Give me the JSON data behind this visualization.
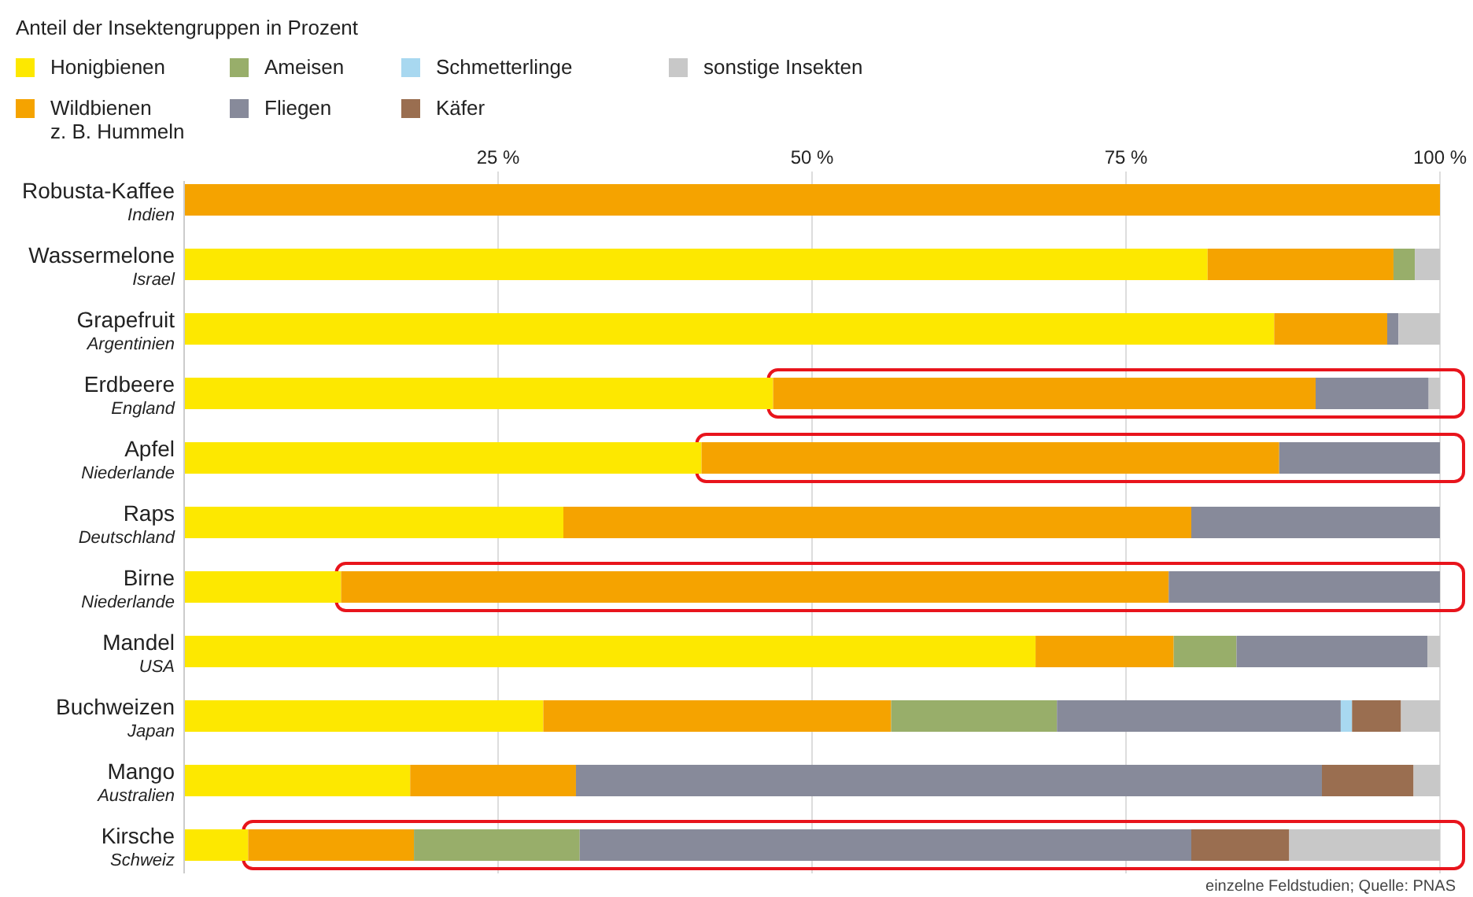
{
  "chart_data": {
    "type": "bar",
    "orientation": "horizontal",
    "stacked": true,
    "title": "Anteil der Insektengruppen in Prozent",
    "categories": [
      "Robusta-Kaffee\nIndien",
      "Wassermelone\nIsrael",
      "Grapefruit\nArgentinien",
      "Erdbeere\nEngland",
      "Apfel\nNiederlande",
      "Raps\nDeutschland",
      "Birne\nNiederlande",
      "Mandel\nUSA",
      "Buchweizen\nJapan",
      "Mango\nAustralien",
      "Kirsche\nSchweiz"
    ],
    "series": [
      {
        "name": "Honigbienen",
        "color": "#fde800",
        "values": [
          0,
          81.5,
          86.8,
          46.9,
          41.2,
          30.2,
          12.5,
          67.8,
          28.6,
          18,
          5.1
        ]
      },
      {
        "name": "Wildbienen\nz. B. Hummeln",
        "color": "#f5a300",
        "values": [
          100,
          14.8,
          9,
          43.2,
          46,
          50,
          65.9,
          11,
          27.7,
          13.2,
          13.2
        ]
      },
      {
        "name": "Ameisen",
        "color": "#98ae6a",
        "values": [
          0,
          1.7,
          0,
          0,
          0,
          0,
          0,
          5,
          13.2,
          0,
          13.2
        ]
      },
      {
        "name": "Fliegen",
        "color": "#878a9a",
        "values": [
          0,
          0,
          0.9,
          9,
          12.8,
          19.8,
          21.6,
          15.2,
          22.6,
          59.4,
          48.7
        ]
      },
      {
        "name": "Schmetterlinge",
        "color": "#a8d8f0",
        "values": [
          0,
          0,
          0,
          0,
          0,
          0,
          0,
          0,
          0.9,
          0,
          0
        ]
      },
      {
        "name": "Käfer",
        "color": "#9a6e50",
        "values": [
          0,
          0,
          0,
          0,
          0,
          0,
          0,
          0,
          3.9,
          7.3,
          7.8
        ]
      },
      {
        "name": "sonstige Insekten",
        "color": "#c8c8c8",
        "values": [
          0,
          2,
          3.3,
          0.9,
          0,
          0,
          0,
          1,
          3.1,
          2.1,
          12
        ]
      }
    ],
    "xlim": [
      0,
      100
    ],
    "xticks": [
      {
        "value": 25,
        "label": "25 %"
      },
      {
        "value": 50,
        "label": "50 %"
      },
      {
        "value": 75,
        "label": "75 %"
      },
      {
        "value": 100,
        "label": "100 %"
      }
    ],
    "grid": "x",
    "legend": "top left",
    "annotations": [
      {
        "y": "Erdbeere\nEngland"
      },
      {
        "y": "Apfel\nNiederlande"
      },
      {
        "y": "Birne\nNiederlande"
      },
      {
        "y": "Kirsche\nSchweiz"
      },
      "einzelne Feldstudien; Quelle: PNAS"
    ]
  }
}
